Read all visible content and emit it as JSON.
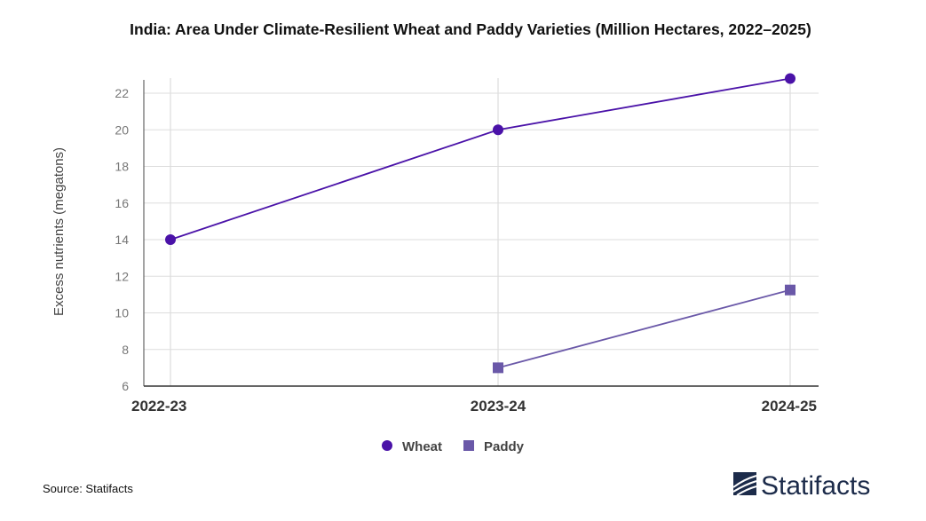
{
  "chart_data": {
    "type": "line",
    "title": "India: Area Under Climate-Resilient Wheat and Paddy Varieties (Million Hectares, 2022–2025)",
    "xlabel": "",
    "ylabel": "Excess nutrients (megatons)",
    "categories": [
      "2022-23",
      "2023-24",
      "2024-25"
    ],
    "ylim": [
      6,
      23
    ],
    "yticks": [
      6,
      8,
      10,
      12,
      14,
      16,
      18,
      20,
      22
    ],
    "grid": true,
    "legend_position": "bottom-center",
    "series": [
      {
        "name": "Wheat",
        "values": [
          14,
          20,
          22.8
        ],
        "color": "#4a12a8",
        "marker": "circle"
      },
      {
        "name": "Paddy",
        "values": [
          null,
          7,
          11.25
        ],
        "color": "#6a58a8",
        "marker": "square"
      }
    ]
  },
  "footer": {
    "source": "Source: Statifacts",
    "brand": "Statifacts"
  }
}
